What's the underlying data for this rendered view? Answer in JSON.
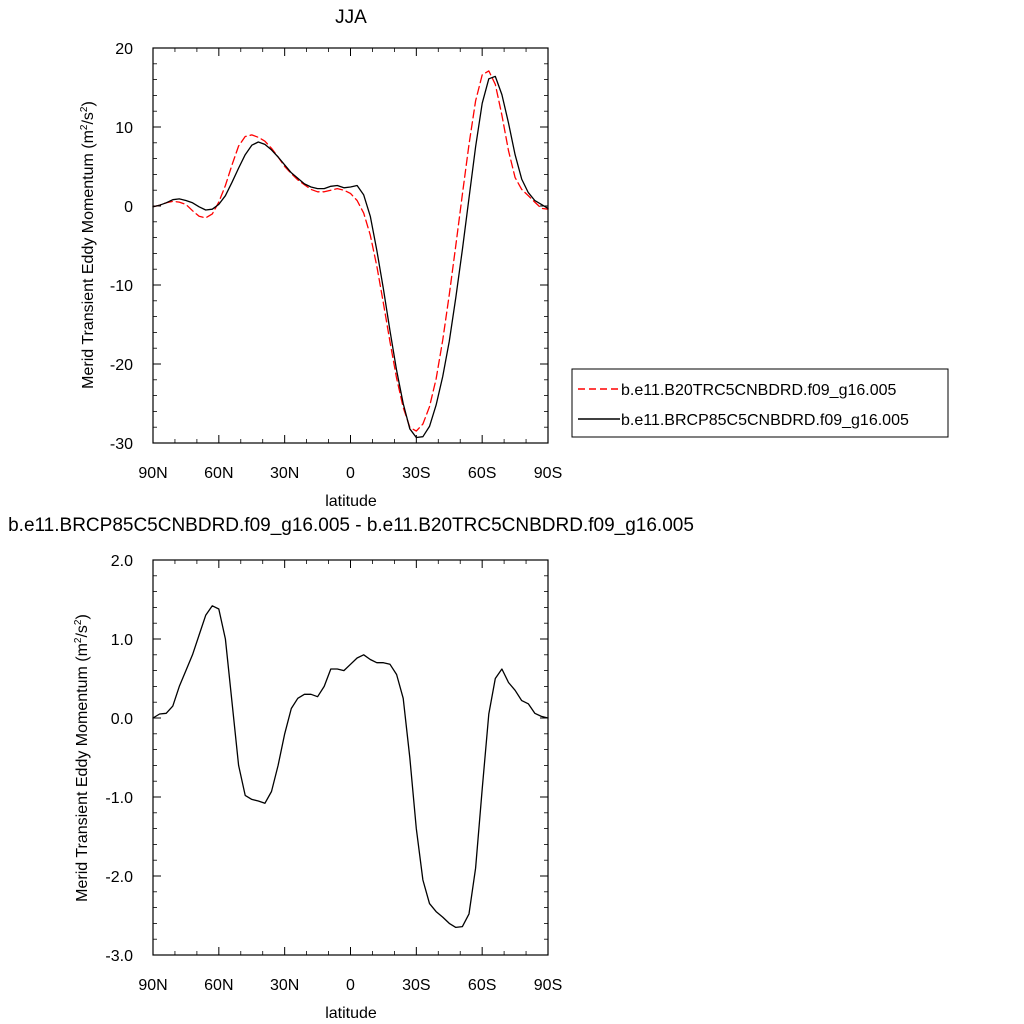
{
  "chart_data": [
    {
      "type": "line",
      "title": "JJA",
      "xlabel": "latitude",
      "ylabel": "Merid Transient Eddy Momentum (m",
      "ylabel_sup1": "2",
      "ylabel_mid": "/s",
      "ylabel_sup2": "2",
      "ylabel_end": ")",
      "xlim": [
        -90,
        90
      ],
      "ylim": [
        -30,
        20
      ],
      "xticks": [
        -90,
        -60,
        -30,
        0,
        30,
        60,
        90
      ],
      "xtick_labels": [
        "90N",
        "60N",
        "30N",
        "0",
        "30S",
        "60S",
        "90S"
      ],
      "yticks": [
        -30,
        -20,
        -10,
        0,
        10,
        20
      ],
      "ytick_labels": [
        "-30",
        "-20",
        "-10",
        "0",
        "10",
        "20"
      ],
      "legend_position": "right",
      "series": [
        {
          "name": "b.e11.B20TRC5CNBDRD.f09_g16.005",
          "color": "#ff0000",
          "dash": "dashed",
          "x": [
            -90,
            -87,
            -84,
            -81,
            -78,
            -75,
            -72,
            -69,
            -66,
            -63,
            -60,
            -57,
            -54,
            -51,
            -48,
            -45,
            -42,
            -39,
            -36,
            -33,
            -30,
            -27,
            -24,
            -21,
            -18,
            -15,
            -12,
            -9,
            -6,
            -3,
            0,
            3,
            6,
            9,
            12,
            15,
            18,
            21,
            24,
            27,
            30,
            33,
            36,
            39,
            42,
            45,
            48,
            51,
            54,
            57,
            60,
            63,
            66,
            69,
            72,
            75,
            78,
            81,
            84,
            87,
            90
          ],
          "y": [
            -0.1,
            0.1,
            0.4,
            0.6,
            0.5,
            0.2,
            -0.6,
            -1.3,
            -1.5,
            -1.0,
            0.5,
            2.6,
            5.2,
            7.6,
            8.8,
            9.0,
            8.7,
            8.2,
            7.3,
            6.2,
            5.0,
            4.1,
            3.3,
            2.7,
            2.1,
            1.8,
            1.8,
            2.0,
            2.2,
            2.0,
            1.6,
            0.7,
            -0.9,
            -3.7,
            -7.6,
            -12.3,
            -17.2,
            -21.8,
            -25.5,
            -28.0,
            -28.5,
            -27.6,
            -25.4,
            -21.9,
            -17.0,
            -11.2,
            -5.0,
            1.5,
            7.8,
            13.3,
            16.6,
            17.1,
            15.4,
            11.5,
            7.0,
            3.6,
            2.1,
            1.3,
            0.5,
            -0.3,
            -0.4
          ]
        },
        {
          "name": "b.e11.BRCP85C5CNBDRD.f09_g16.005",
          "color": "#000000",
          "dash": "solid",
          "x": [
            -90,
            -87,
            -84,
            -81,
            -78,
            -75,
            -72,
            -69,
            -66,
            -63,
            -60,
            -57,
            -54,
            -51,
            -48,
            -45,
            -42,
            -39,
            -36,
            -33,
            -30,
            -27,
            -24,
            -21,
            -18,
            -15,
            -12,
            -9,
            -6,
            -3,
            0,
            3,
            6,
            9,
            12,
            15,
            18,
            21,
            24,
            27,
            30,
            33,
            36,
            39,
            42,
            45,
            48,
            51,
            54,
            57,
            60,
            63,
            66,
            69,
            72,
            75,
            78,
            81,
            84,
            87,
            90
          ],
          "y": [
            -0.1,
            0.1,
            0.4,
            0.8,
            0.9,
            0.7,
            0.4,
            -0.1,
            -0.5,
            -0.4,
            0.2,
            1.3,
            3.0,
            4.8,
            6.5,
            7.7,
            8.1,
            7.8,
            7.1,
            6.2,
            5.2,
            4.2,
            3.5,
            2.8,
            2.4,
            2.2,
            2.2,
            2.5,
            2.6,
            2.3,
            2.4,
            2.6,
            1.4,
            -1.3,
            -5.6,
            -10.5,
            -15.8,
            -20.8,
            -25.0,
            -28.2,
            -29.3,
            -29.2,
            -27.9,
            -25.2,
            -21.6,
            -17.1,
            -11.6,
            -5.5,
            1.0,
            7.5,
            13.0,
            16.1,
            16.4,
            14.1,
            10.5,
            6.5,
            3.4,
            1.7,
            0.7,
            0.2,
            -0.3
          ]
        }
      ]
    },
    {
      "type": "line",
      "title": "b.e11.BRCP85C5CNBDRD.f09_g16.005 - b.e11.B20TRC5CNBDRD.f09_g16.005",
      "xlabel": "latitude",
      "ylabel": "Merid Transient Eddy Momentum (m",
      "ylabel_sup1": "2",
      "ylabel_mid": "/s",
      "ylabel_sup2": "2",
      "ylabel_end": ")",
      "xlim": [
        -90,
        90
      ],
      "ylim": [
        -3,
        2
      ],
      "xticks": [
        -90,
        -60,
        -30,
        0,
        30,
        60,
        90
      ],
      "xtick_labels": [
        "90N",
        "60N",
        "30N",
        "0",
        "30S",
        "60S",
        "90S"
      ],
      "yticks": [
        -3,
        -2,
        -1,
        0,
        1,
        2
      ],
      "ytick_labels": [
        "-3.0",
        "-2.0",
        "-1.0",
        "0.0",
        "1.0",
        "2.0"
      ],
      "series": [
        {
          "color": "#000000",
          "dash": "solid",
          "x": [
            -90,
            -87,
            -84,
            -81,
            -78,
            -75,
            -72,
            -69,
            -66,
            -63,
            -60,
            -57,
            -54,
            -51,
            -48,
            -45,
            -42,
            -39,
            -36,
            -33,
            -30,
            -27,
            -24,
            -21,
            -18,
            -15,
            -12,
            -9,
            -6,
            -3,
            0,
            3,
            6,
            9,
            12,
            15,
            18,
            21,
            24,
            27,
            30,
            33,
            36,
            39,
            42,
            45,
            48,
            51,
            54,
            57,
            60,
            63,
            66,
            69,
            72,
            75,
            78,
            81,
            84,
            87,
            90
          ],
          "y": [
            0.0,
            0.05,
            0.06,
            0.15,
            0.4,
            0.6,
            0.8,
            1.05,
            1.3,
            1.42,
            1.38,
            1.0,
            0.2,
            -0.6,
            -0.98,
            -1.03,
            -1.05,
            -1.08,
            -0.93,
            -0.6,
            -0.2,
            0.12,
            0.25,
            0.3,
            0.3,
            0.27,
            0.4,
            0.62,
            0.62,
            0.6,
            0.68,
            0.76,
            0.8,
            0.74,
            0.7,
            0.7,
            0.68,
            0.55,
            0.25,
            -0.5,
            -1.4,
            -2.05,
            -2.35,
            -2.45,
            -2.52,
            -2.6,
            -2.65,
            -2.64,
            -2.48,
            -1.9,
            -0.9,
            0.05,
            0.5,
            0.62,
            0.45,
            0.35,
            0.22,
            0.18,
            0.06,
            0.02,
            0.0
          ]
        }
      ]
    }
  ]
}
